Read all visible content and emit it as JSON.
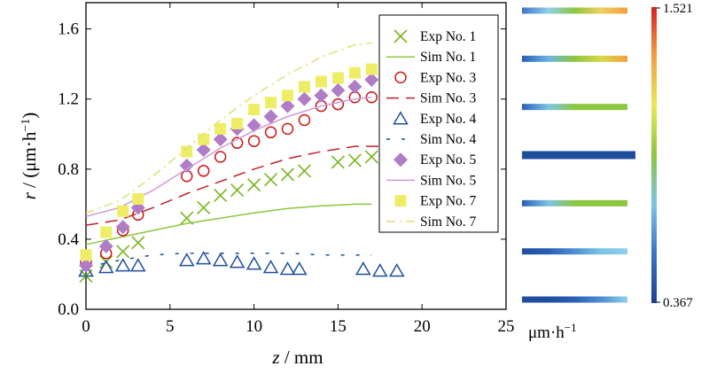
{
  "chart_data": {
    "type": "scatter",
    "xlabel_var": "z",
    "xlabel_unit": " / mm",
    "ylabel_var": "r",
    "ylabel_unit": " / (μm·h",
    "ylabel_exp": "−1",
    "ylabel_close": ")",
    "xlim": [
      0,
      25
    ],
    "ylim": [
      0,
      1.75
    ],
    "x_ticks": [
      0,
      5,
      10,
      15,
      20,
      25
    ],
    "x_tick_labels": [
      "0",
      "5",
      "10",
      "15",
      "20",
      "25"
    ],
    "y_ticks": [
      0,
      0.4,
      0.8,
      1.2,
      1.6
    ],
    "y_tick_labels": [
      "0.0",
      "0.4",
      "0.8",
      "1.2",
      "1.6"
    ],
    "grid": false,
    "legend_position": "top-right",
    "series": [
      {
        "name": "Exp No. 1",
        "kind": "markers",
        "marker": "x",
        "color": "#7ab51d",
        "x": [
          0,
          1.2,
          2.2,
          3.1,
          6,
          7,
          8,
          9,
          10,
          11,
          12,
          13,
          15,
          16,
          17
        ],
        "y": [
          0.19,
          0.27,
          0.33,
          0.38,
          0.52,
          0.58,
          0.65,
          0.68,
          0.71,
          0.74,
          0.77,
          0.79,
          0.84,
          0.85,
          0.87
        ]
      },
      {
        "name": "Sim No. 1",
        "kind": "line",
        "dash": "solid",
        "color": "#8dc63f",
        "x": [
          0,
          2,
          4,
          6,
          8,
          10,
          12,
          14,
          16,
          17
        ],
        "y": [
          0.37,
          0.41,
          0.45,
          0.49,
          0.52,
          0.55,
          0.575,
          0.59,
          0.6,
          0.6
        ]
      },
      {
        "name": "Exp No. 3",
        "kind": "markers",
        "marker": "circle",
        "color": "#cc1818",
        "x": [
          0,
          1.2,
          2.2,
          3.1,
          6,
          7,
          8,
          9,
          10,
          11,
          12,
          13,
          14,
          15,
          16,
          17
        ],
        "y": [
          0.27,
          0.32,
          0.45,
          0.54,
          0.76,
          0.79,
          0.87,
          0.95,
          0.96,
          1.01,
          1.03,
          1.08,
          1.16,
          1.17,
          1.21,
          1.21
        ]
      },
      {
        "name": "Sim No. 3",
        "kind": "line",
        "dash": "long-dash",
        "color": "#c0202a",
        "x": [
          0,
          2,
          4,
          6,
          8,
          10,
          12,
          14,
          16,
          17.5
        ],
        "y": [
          0.48,
          0.51,
          0.58,
          0.66,
          0.73,
          0.8,
          0.86,
          0.9,
          0.93,
          0.93
        ]
      },
      {
        "name": "Exp No. 4",
        "kind": "markers",
        "marker": "triangle",
        "color": "#1f4e9c",
        "x": [
          0,
          1.2,
          2.2,
          3.1,
          6,
          7,
          8,
          9,
          10,
          11,
          12,
          12.7,
          16.5,
          17.5,
          18.5
        ],
        "y": [
          0.22,
          0.24,
          0.25,
          0.25,
          0.28,
          0.29,
          0.28,
          0.27,
          0.26,
          0.24,
          0.23,
          0.23,
          0.23,
          0.22,
          0.22
        ]
      },
      {
        "name": "Sim No. 4",
        "kind": "line",
        "dash": "short-dash",
        "color": "#1f4e9c",
        "x": [
          0,
          2,
          4,
          6,
          8,
          10,
          12,
          14,
          16,
          17
        ],
        "y": [
          0.24,
          0.28,
          0.31,
          0.32,
          0.32,
          0.32,
          0.32,
          0.31,
          0.31,
          0.31
        ]
      },
      {
        "name": "Exp No. 5",
        "kind": "markers",
        "marker": "diamond",
        "color": "#b07cc6",
        "x": [
          0,
          1.2,
          2.2,
          3.1,
          6,
          7,
          8,
          9,
          10,
          11,
          12,
          13,
          14,
          15,
          16,
          17
        ],
        "y": [
          0.25,
          0.36,
          0.47,
          0.58,
          0.82,
          0.91,
          0.97,
          1.03,
          1.05,
          1.1,
          1.16,
          1.2,
          1.22,
          1.25,
          1.27,
          1.31
        ]
      },
      {
        "name": "Sim No. 5",
        "kind": "line",
        "dash": "solid",
        "color": "#cf9ad6",
        "x": [
          0,
          2,
          4,
          6,
          8,
          10,
          12,
          14,
          16,
          17
        ],
        "y": [
          0.53,
          0.58,
          0.68,
          0.8,
          0.92,
          1.02,
          1.1,
          1.16,
          1.2,
          1.21
        ]
      },
      {
        "name": "Exp No. 7",
        "kind": "markers",
        "marker": "square",
        "color": "#eeee66",
        "x": [
          0,
          1.2,
          2.2,
          3.1,
          6,
          7,
          8,
          9,
          10,
          11,
          12,
          13,
          14,
          15,
          16,
          17
        ],
        "y": [
          0.31,
          0.44,
          0.56,
          0.63,
          0.9,
          0.97,
          1.03,
          1.06,
          1.14,
          1.18,
          1.22,
          1.27,
          1.3,
          1.32,
          1.35,
          1.37
        ]
      },
      {
        "name": "Sim No. 7",
        "kind": "line",
        "dash": "dash-dot",
        "color": "#e0e070",
        "x": [
          0,
          2,
          4,
          6,
          8,
          10,
          12,
          14,
          16,
          17
        ],
        "y": [
          0.55,
          0.62,
          0.76,
          0.92,
          1.08,
          1.22,
          1.34,
          1.44,
          1.51,
          1.52
        ]
      }
    ],
    "side_bars": [
      {
        "stops": [
          "#3f73c9",
          "#8fd0ea",
          "#8dc63f",
          "#f0d060",
          "#f2a040"
        ]
      },
      {
        "stops": [
          "#2a5fb5",
          "#6cb3e3",
          "#8dc63f",
          "#d6d94a",
          "#f2a040"
        ]
      },
      {
        "stops": [
          "#2a5fb5",
          "#7cc4e7",
          "#8dc63f",
          "#8dc63f",
          "#8dc63f"
        ]
      },
      {
        "stops": [
          "#1f4e9c",
          "#1f4e9c",
          "#1f4e9c",
          "#1f4e9c",
          "#1f4e9c"
        ]
      },
      {
        "stops": [
          "#2a5fb5",
          "#7cc4e7",
          "#8dc63f",
          "#8dc63f",
          "#8dc63f"
        ]
      },
      {
        "stops": [
          "#1f4e9c",
          "#2a5fb5",
          "#4f8fd3",
          "#7cc4e7",
          "#8fd0ea"
        ]
      },
      {
        "stops": [
          "#1f4e9c",
          "#1f4e9c",
          "#2a5fb5",
          "#4f8fd3",
          "#8fd0ea"
        ]
      }
    ],
    "colorbar": {
      "max_label": "1.521",
      "min_label": "0.367",
      "stops": [
        "#1f3e8f",
        "#3a73c8",
        "#7cc4e7",
        "#8dc63f",
        "#e8e85a",
        "#f2a040",
        "#d42020"
      ]
    },
    "unit_prefix": "μm·h",
    "unit_exp": "−1"
  }
}
